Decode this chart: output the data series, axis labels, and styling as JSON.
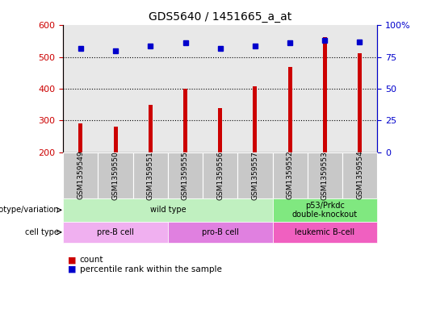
{
  "title": "GDS5640 / 1451665_a_at",
  "samples": [
    "GSM1359549",
    "GSM1359550",
    "GSM1359551",
    "GSM1359555",
    "GSM1359556",
    "GSM1359557",
    "GSM1359552",
    "GSM1359553",
    "GSM1359554"
  ],
  "counts": [
    290,
    280,
    350,
    400,
    338,
    407,
    470,
    562,
    512
  ],
  "percentiles": [
    82,
    80,
    84,
    86,
    82,
    84,
    86,
    88,
    87
  ],
  "ymin": 200,
  "ymax": 600,
  "yticks": [
    200,
    300,
    400,
    500,
    600
  ],
  "y2min": 0,
  "y2max": 100,
  "y2ticks": [
    0,
    25,
    50,
    75,
    100
  ],
  "bar_color": "#cc0000",
  "dot_color": "#0000cc",
  "bg_color": "#e8e8e8",
  "sample_box_color": "#c8c8c8",
  "genotype_groups": [
    {
      "label": "wild type",
      "start": 0,
      "end": 6,
      "color": "#c0f0c0"
    },
    {
      "label": "p53/Prkdc\ndouble-knockout",
      "start": 6,
      "end": 9,
      "color": "#80e880"
    }
  ],
  "celltype_groups": [
    {
      "label": "pre-B cell",
      "start": 0,
      "end": 3,
      "color": "#f0b0f0"
    },
    {
      "label": "pro-B cell",
      "start": 3,
      "end": 6,
      "color": "#e080e0"
    },
    {
      "label": "leukemic B-cell",
      "start": 6,
      "end": 9,
      "color": "#f060c0"
    }
  ],
  "legend_count_label": "count",
  "legend_pct_label": "percentile rank within the sample",
  "genotype_label": "genotype/variation",
  "celltype_label": "cell type"
}
